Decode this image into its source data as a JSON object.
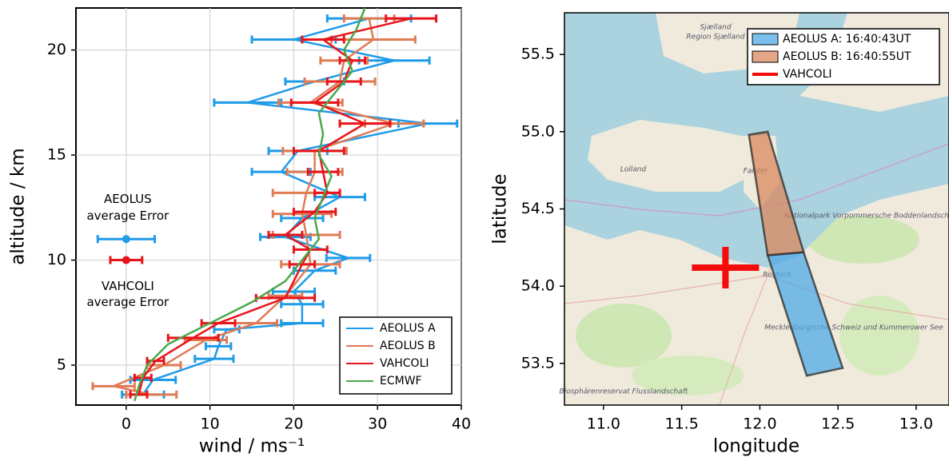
{
  "chart_data": [
    {
      "type": "profile",
      "xlabel": "wind / ms⁻¹",
      "ylabel": "altitude / km",
      "xlim": [
        -6,
        40
      ],
      "xticks": [
        0,
        10,
        20,
        30,
        40
      ],
      "ylim": [
        3.1,
        22
      ],
      "yticks": [
        5,
        10,
        15,
        20
      ],
      "grid": true,
      "legend": "lower right",
      "series": [
        {
          "name": "AEOLUS A",
          "color": "#1f9be8",
          "y": [
            3.6,
            4.3,
            5.3,
            5.9,
            6.7,
            7.0,
            7.9,
            8.5,
            9.5,
            10.1,
            11.1,
            12.0,
            13.0,
            14.2,
            15.2,
            16.5,
            17.5,
            18.5,
            19.5,
            20.5,
            21.5
          ],
          "x": [
            2.0,
            3.2,
            10.5,
            11,
            12,
            21,
            21,
            20,
            22.5,
            26.5,
            19,
            21,
            25.5,
            18.5,
            20.5,
            36,
            14.5,
            22.5,
            32,
            20,
            29
          ],
          "errors": [
            2.5,
            2.7,
            2.3,
            1.5,
            1.5,
            2.5,
            2.5,
            2.5,
            2.5,
            2.6,
            3.0,
            2.5,
            3.0,
            3.5,
            3.5,
            3.5,
            4.0,
            3.5,
            4.2,
            5.0,
            5.0
          ]
        },
        {
          "name": "AEOLUS B",
          "color": "#e07b54",
          "y": [
            3.6,
            4.0,
            5.0,
            6.2,
            7.0,
            8.3,
            9.8,
            11.2,
            12.2,
            13.2,
            14.2,
            15.2,
            16.5,
            17.5,
            18.5,
            19.5,
            20.5,
            21.5
          ],
          "x": [
            3,
            -1.5,
            4.5,
            9.5,
            15.5,
            19,
            22,
            21.5,
            21,
            21.5,
            22.5,
            22.5,
            32,
            22,
            25.5,
            26,
            29.5,
            29
          ],
          "errors": [
            3,
            2.5,
            2,
            2.5,
            2.5,
            2,
            3.5,
            4,
            3.5,
            4,
            3.3,
            3.8,
            3.5,
            3.8,
            4.2,
            2.8,
            5,
            3
          ]
        },
        {
          "name": "VAHCOLI",
          "color": "#e8141a",
          "y": [
            3.6,
            4.4,
            5.2,
            6.3,
            7.0,
            8.2,
            9.8,
            10.5,
            11.2,
            12.3,
            13.2,
            14.2,
            15.2,
            16.5,
            17.5,
            18.5,
            19.5,
            20.5,
            21.5
          ],
          "x": [
            1.5,
            2,
            3.5,
            8,
            11,
            19,
            21,
            22,
            19,
            22.5,
            24,
            23.5,
            23,
            28.5,
            22.5,
            26,
            27,
            23.5,
            34
          ],
          "errors": [
            1,
            1,
            1,
            3,
            2,
            3.5,
            1.5,
            2,
            2,
            2.5,
            1.5,
            1.8,
            3,
            3,
            2.8,
            2,
            1.5,
            2.5,
            3
          ]
        },
        {
          "name": "ECMWF",
          "color": "#4aa84a",
          "y": [
            3.3,
            4,
            5,
            6,
            7,
            8,
            9,
            10,
            11,
            12,
            13,
            14,
            15,
            16,
            17,
            18,
            19,
            20,
            21,
            22
          ],
          "x": [
            1,
            1.5,
            2.5,
            5,
            10,
            15,
            19,
            21,
            23,
            22.5,
            23.5,
            24.5,
            23,
            23.5,
            23,
            25,
            27,
            26,
            27.5,
            28.5
          ]
        }
      ],
      "average_errors": [
        {
          "label": [
            "AEOLUS",
            "average Error"
          ],
          "color": "#1f9be8",
          "x": 0,
          "y": 11,
          "error": 3.4
        },
        {
          "label": [
            "VAHCOLI",
            "average Error"
          ],
          "color": "#e8141a",
          "x": 0,
          "y": 10,
          "error": 1.9
        }
      ]
    },
    {
      "type": "map",
      "xlabel": "longitude",
      "ylabel": "latitude",
      "xlim": [
        10.75,
        13.21
      ],
      "xticks": [
        {
          "value": 11,
          "label": "11.0"
        },
        11.5,
        {
          "value": 12,
          "label": "12.0"
        },
        12.5,
        {
          "value": 13,
          "label": "13.0"
        }
      ],
      "ylim": [
        53.23,
        55.77
      ],
      "yticks": [
        53.5,
        {
          "value": 54,
          "label": "54.0"
        },
        54.5,
        {
          "value": 55,
          "label": "55.0"
        },
        55.5
      ],
      "legend": "upper right",
      "map_labels": [
        "Sjælland",
        "Region Sjælland",
        "Lolland",
        "Falster",
        "Rostock",
        "Nationalpark Vorpommersche Boddenlandschaft",
        "Mecklenburgische Schweiz und Kummerower See",
        "Biosphärenreservat Flusslandschaft"
      ],
      "series": [
        {
          "name": "AEOLUS A: 16:40:43UT",
          "color": "#4fa9e6",
          "x": [
            12.05,
            12.28,
            12.53,
            12.3
          ],
          "y": [
            54.2,
            54.22,
            53.47,
            53.42
          ]
        },
        {
          "name": "AEOLUS B: 16:40:55UT",
          "color": "#d9885f",
          "x": [
            11.93,
            12.05,
            12.28,
            12.05
          ],
          "y": [
            54.98,
            55.0,
            54.22,
            54.2
          ]
        },
        {
          "name": "VAHCOLI",
          "color": "#f20c0c",
          "x": [
            11.78
          ],
          "y": [
            54.12
          ]
        }
      ]
    }
  ]
}
